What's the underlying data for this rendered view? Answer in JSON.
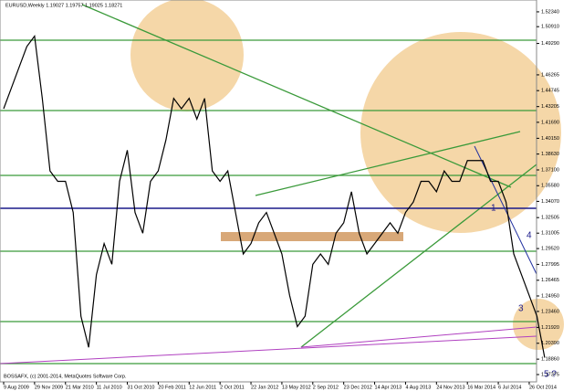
{
  "chart_data": {
    "type": "line",
    "title": "EURUSD,Weekly  1.19027 1.19757 1.19025 1.18271",
    "footer": "BOSSAFX, (c) 2001-2014, MetaQuotes Software Corp.",
    "annotations": [
      "1",
      "3",
      "4",
      "5 ?"
    ],
    "categories": [
      "9 Aug 2009",
      null,
      null,
      null,
      "29 Nov 2009",
      null,
      null,
      null,
      "21 Mar 2010",
      null,
      null,
      null,
      "11 Jul 2010",
      null,
      null,
      null,
      "31 Oct 2010",
      null,
      null,
      null,
      "20 Feb 2011",
      null,
      null,
      null,
      "12 Jun 2011",
      null,
      null,
      null,
      "2 Oct 2011",
      null,
      null,
      null,
      "22 Jan 2012",
      null,
      null,
      null,
      "13 May 2012",
      null,
      null,
      null,
      "2 Sep 2012",
      null,
      null,
      null,
      "23 Dec 2012",
      null,
      null,
      null,
      "14 Apr 2013",
      null,
      null,
      null,
      "4 Aug 2013",
      null,
      null,
      null,
      "24 Nov 2013",
      null,
      null,
      null,
      "16 Mar 2014",
      null,
      null,
      null,
      "6 Jul 2014",
      null,
      null,
      null,
      "26 Oct 2014",
      null,
      null
    ],
    "series": [
      {
        "name": "EURUSD",
        "color": "#000000",
        "values": [
          1.43,
          1.45,
          1.47,
          1.49,
          1.5,
          1.44,
          1.37,
          1.36,
          1.36,
          1.33,
          1.23,
          1.2,
          1.27,
          1.3,
          1.28,
          1.36,
          1.39,
          1.33,
          1.31,
          1.36,
          1.37,
          1.4,
          1.44,
          1.43,
          1.44,
          1.42,
          1.44,
          1.37,
          1.36,
          1.37,
          1.33,
          1.29,
          1.3,
          1.32,
          1.33,
          1.31,
          1.29,
          1.25,
          1.22,
          1.23,
          1.28,
          1.29,
          1.28,
          1.31,
          1.32,
          1.35,
          1.31,
          1.29,
          1.3,
          1.31,
          1.32,
          1.31,
          1.33,
          1.34,
          1.36,
          1.36,
          1.35,
          1.37,
          1.36,
          1.36,
          1.38,
          1.38,
          1.38,
          1.36,
          1.36,
          1.34,
          1.29,
          1.27,
          1.25,
          1.23,
          1.19
        ]
      }
    ],
    "ylim": [
      1.1667,
      1.5348
    ],
    "yticks": [
      {
        "value": 1.5234,
        "label": "1.52340"
      },
      {
        "value": 1.5091,
        "label": "1.50910"
      },
      {
        "value": 1.4929,
        "label": "1.49290"
      },
      {
        "value": 1.46265,
        "label": "1.46265"
      },
      {
        "value": 1.44745,
        "label": "1.44745"
      },
      {
        "value": 1.43205,
        "label": "1.43205"
      },
      {
        "value": 1.4169,
        "label": "1.41690"
      },
      {
        "value": 1.4015,
        "label": "1.40150"
      },
      {
        "value": 1.3863,
        "label": "1.38630"
      },
      {
        "value": 1.371,
        "label": "1.37100"
      },
      {
        "value": 1.3558,
        "label": "1.35580"
      },
      {
        "value": 1.3407,
        "label": "1.34070"
      },
      {
        "value": 1.32505,
        "label": "1.32505"
      },
      {
        "value": 1.31005,
        "label": "1.31005"
      },
      {
        "value": 1.2952,
        "label": "1.29520"
      },
      {
        "value": 1.27995,
        "label": "1.27995"
      },
      {
        "value": 1.26465,
        "label": "1.26465"
      },
      {
        "value": 1.2495,
        "label": "1.24950"
      },
      {
        "value": 1.2346,
        "label": "1.23460"
      },
      {
        "value": 1.2192,
        "label": "1.21920"
      },
      {
        "value": 1.2039,
        "label": "1.20390"
      },
      {
        "value": 1.1886,
        "label": "1.18860"
      },
      {
        "value": 1.17375,
        "label": "1.17375"
      }
    ],
    "grid": false
  }
}
